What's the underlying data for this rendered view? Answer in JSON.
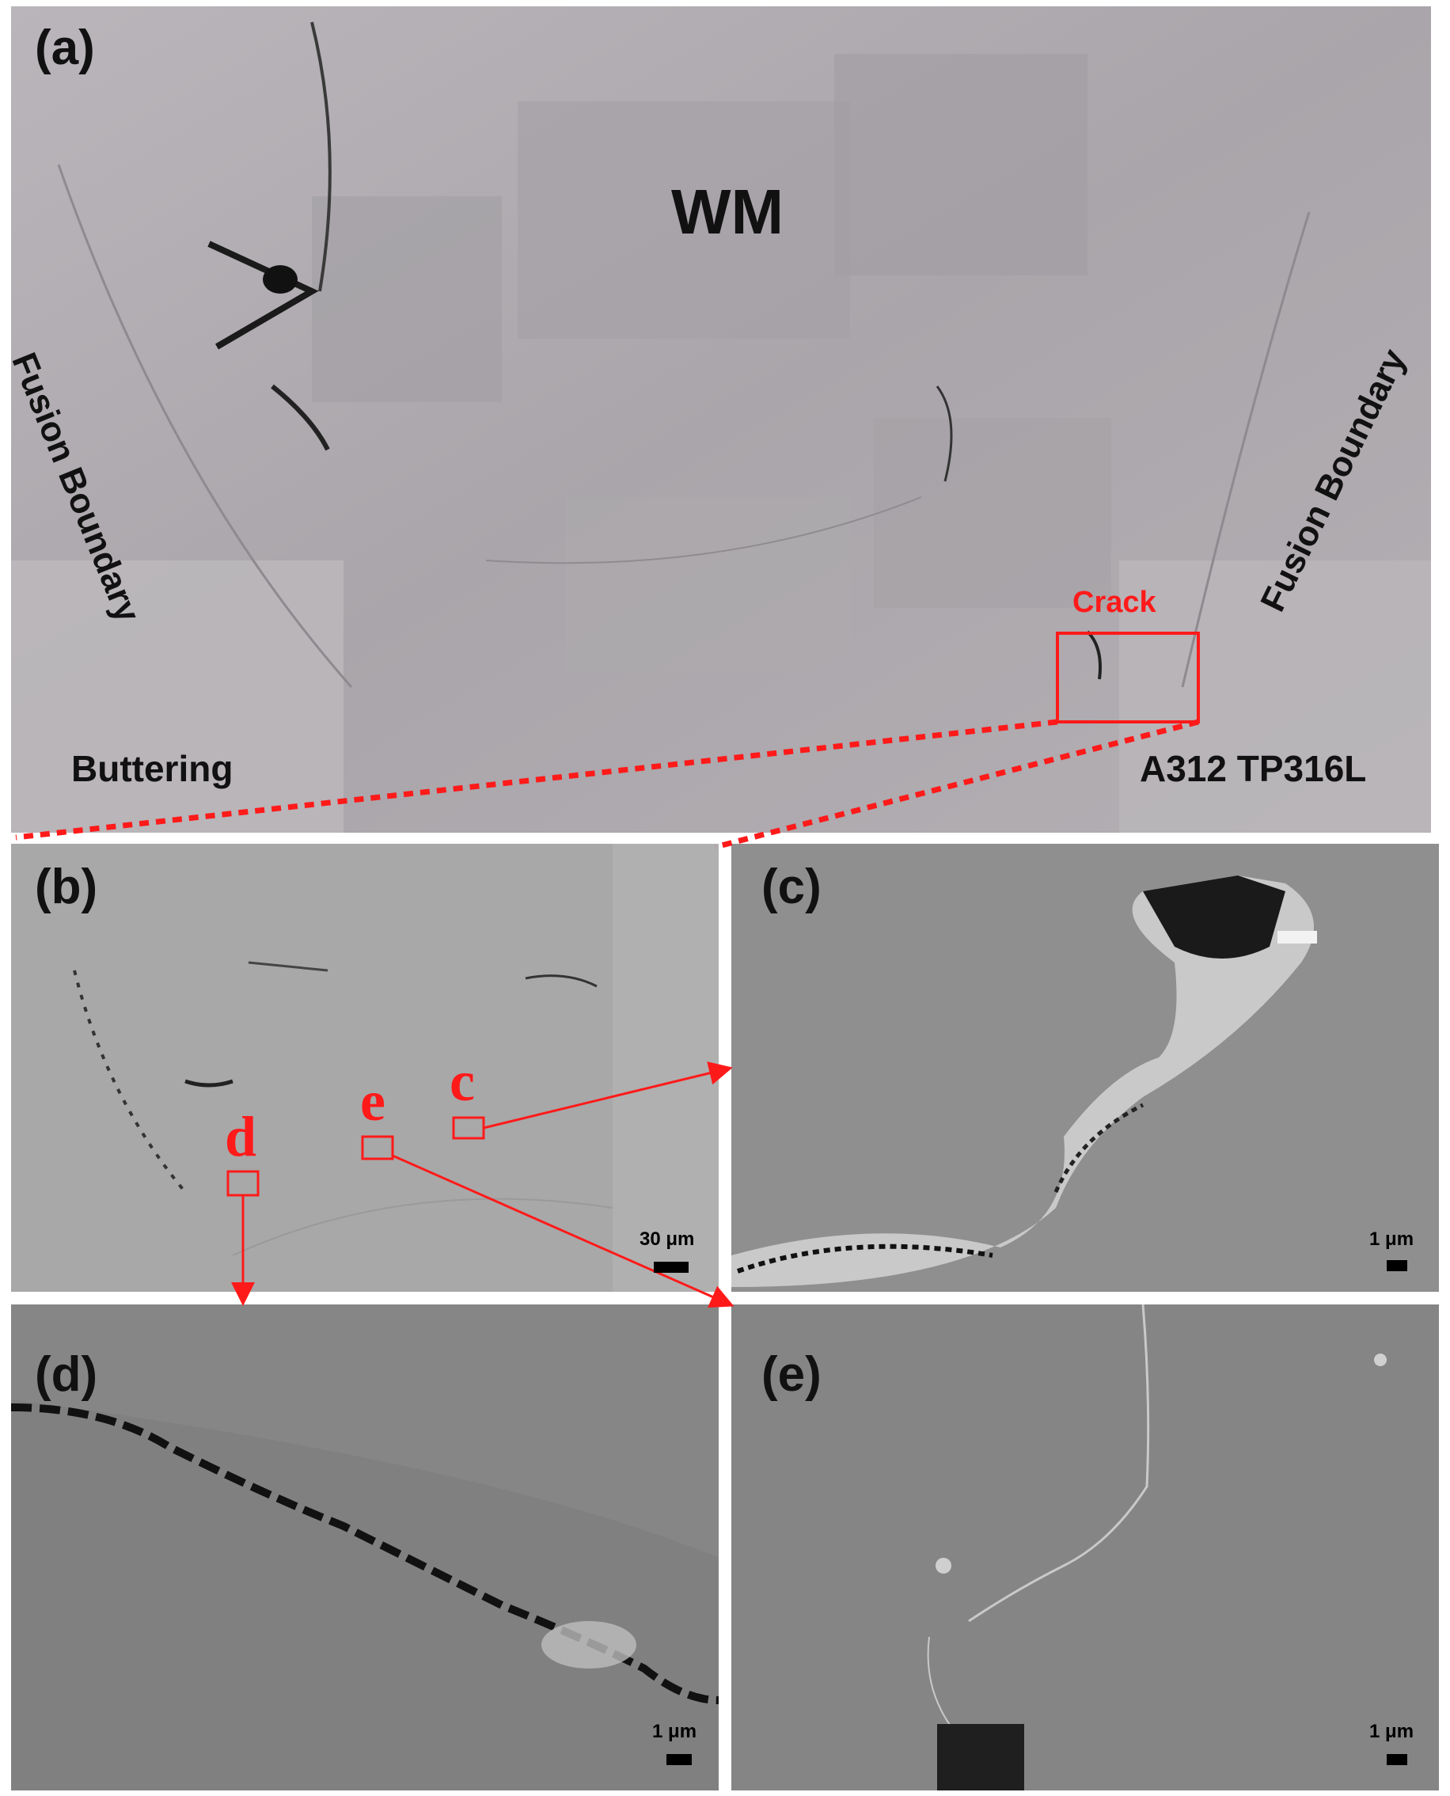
{
  "panels": {
    "a": {
      "label": "(a)",
      "wm": "WM",
      "fusion_left": "Fusion Boundary",
      "fusion_right": "Fusion Boundary",
      "crack": "Crack",
      "buttering": "Buttering",
      "base_metal": "A312 TP316L"
    },
    "b": {
      "label": "(b)",
      "marker_c": "c",
      "marker_d": "d",
      "marker_e": "e",
      "scale": "30 μm"
    },
    "c": {
      "label": "(c)",
      "scale": "1 μm"
    },
    "d": {
      "label": "(d)",
      "scale": "1 μm"
    },
    "e": {
      "label": "(e)",
      "scale": "1 μm"
    }
  },
  "colors": {
    "annotation": "#ff1a1a",
    "text": "#111111"
  }
}
